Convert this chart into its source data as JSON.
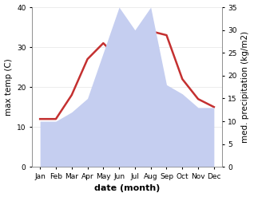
{
  "months": [
    "Jan",
    "Feb",
    "Mar",
    "Apr",
    "May",
    "Jun",
    "Jul",
    "Aug",
    "Sep",
    "Oct",
    "Nov",
    "Dec"
  ],
  "month_positions": [
    1,
    2,
    3,
    4,
    5,
    6,
    7,
    8,
    9,
    10,
    11,
    12
  ],
  "temperature": [
    12,
    12,
    18,
    27,
    31,
    27,
    30,
    34,
    33,
    22,
    17,
    15
  ],
  "precipitation": [
    10,
    10,
    12,
    15,
    25,
    35,
    30,
    35,
    18,
    16,
    13,
    13
  ],
  "temp_color": "#c43030",
  "precip_color": "#c5cef0",
  "temp_ylim": [
    0,
    40
  ],
  "precip_ylim": [
    0,
    35
  ],
  "temp_yticks": [
    0,
    10,
    20,
    30,
    40
  ],
  "precip_yticks": [
    0,
    5,
    10,
    15,
    20,
    25,
    30,
    35
  ],
  "xlabel": "date (month)",
  "ylabel_left": "max temp (C)",
  "ylabel_right": "med. precipitation (kg/m2)",
  "bg_color": "#ffffff",
  "line_width": 1.8,
  "label_fontsize": 7.5,
  "tick_fontsize": 6.5
}
